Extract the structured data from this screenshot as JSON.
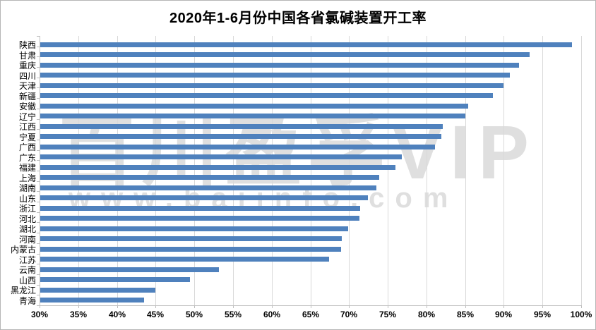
{
  "chart_data": {
    "type": "bar",
    "orientation": "horizontal",
    "title": "2020年1-6月份中国各省氯碱装置开工率",
    "categories": [
      "陕西",
      "甘肃",
      "重庆",
      "四川",
      "天津",
      "新疆",
      "安徽",
      "辽宁",
      "江西",
      "宁夏",
      "广西",
      "广东",
      "福建",
      "上海",
      "湖南",
      "山东",
      "浙江",
      "河北",
      "湖北",
      "河南",
      "内蒙古",
      "江苏",
      "云南",
      "山西",
      "黑龙江",
      "青海"
    ],
    "values": [
      98.8,
      93.3,
      92.0,
      90.8,
      90.0,
      88.6,
      85.4,
      85.0,
      82.1,
      81.9,
      81.1,
      76.8,
      76.0,
      73.9,
      73.5,
      72.4,
      71.4,
      71.3,
      69.9,
      69.1,
      69.0,
      67.4,
      53.2,
      49.4,
      45.0,
      43.5
    ],
    "value_unit": "%",
    "xlim": [
      30,
      100
    ],
    "x_tick_step": 5,
    "x_tick_labels": [
      "30%",
      "35%",
      "40%",
      "45%",
      "50%",
      "55%",
      "60%",
      "65%",
      "70%",
      "75%",
      "80%",
      "85%",
      "90%",
      "95%",
      "100%"
    ],
    "grid": "vertical",
    "legend": "none",
    "bar_color": "#4f81bd"
  },
  "watermark": {
    "line1": "百川盈孚VIP",
    "line2": "www.baiinfo.com"
  },
  "colors": {
    "bar": "#4f81bd",
    "gridline": "#d9d9d9",
    "axis": "#bfbfbf",
    "watermark": "#dadada",
    "background": "#ffffff"
  }
}
